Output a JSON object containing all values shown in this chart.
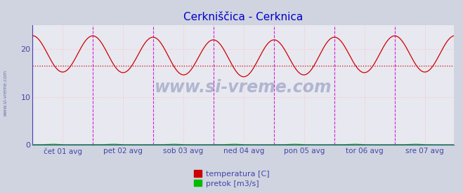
{
  "title": "Cerkniščica - Cerknica",
  "title_color": "#0000cc",
  "bg_color": "#d0d4e0",
  "plot_bg_color": "#e8e8f0",
  "ylim": [
    0,
    25
  ],
  "yticks": [
    0,
    10,
    20
  ],
  "grid_color": "#ffbbbb",
  "hline_value": 16.5,
  "hline_color": "#cc0000",
  "vline_color": "#cc00cc",
  "temp_color": "#cc0000",
  "pretok_color": "#00bb00",
  "watermark_text": "www.si-vreme.com",
  "watermark_color": "#334488",
  "watermark_alpha": 0.3,
  "x_tick_labels": [
    "čet 01 avg",
    "pet 02 avg",
    "sob 03 avg",
    "ned 04 avg",
    "pon 05 avg",
    "tor 06 avg",
    "sre 07 avg"
  ],
  "n_points": 336,
  "legend_temp_label": "temperatura [C]",
  "legend_pretok_label": "pretok [m3/s]",
  "left_label": "www.si-vreme.com",
  "left_label_color": "#334488",
  "axis_color": "#4444aa",
  "figsize": [
    6.59,
    2.76
  ],
  "dpi": 100
}
